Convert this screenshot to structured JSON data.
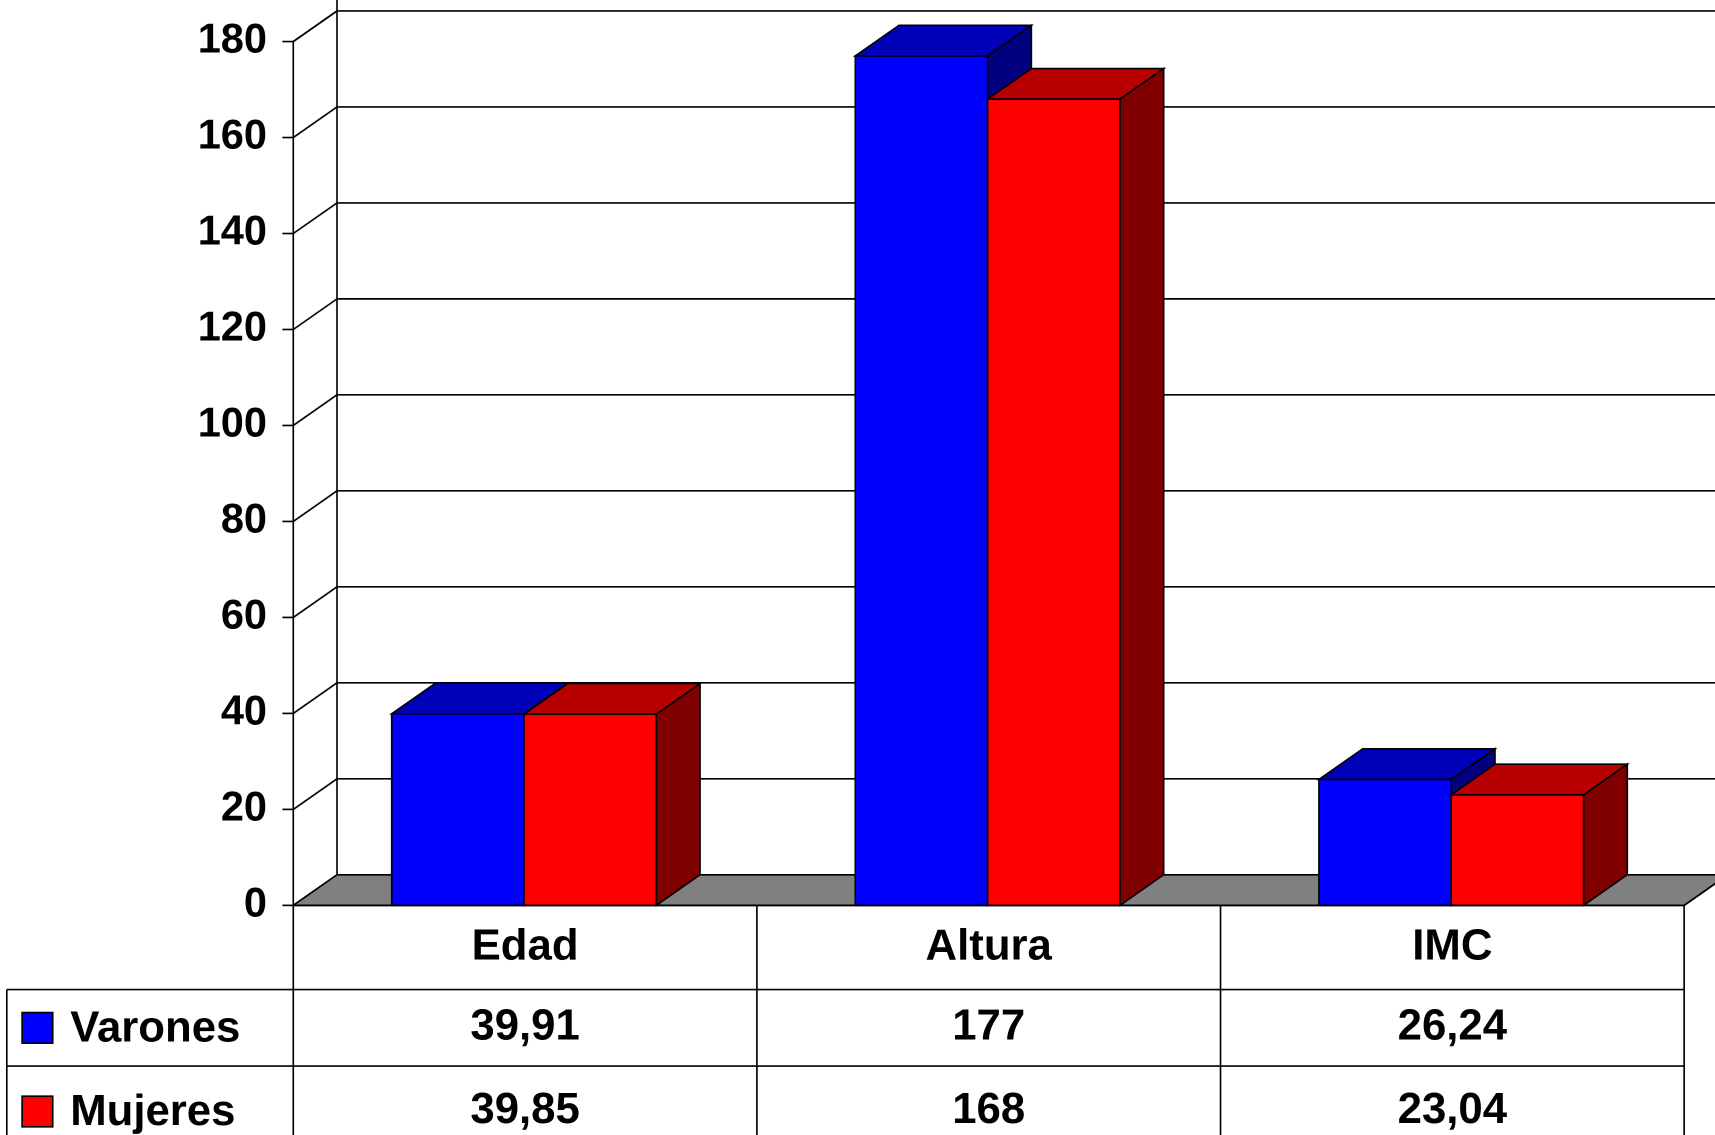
{
  "chart_data": {
    "type": "bar3d",
    "categories": [
      "Edad",
      "Altura",
      "IMC"
    ],
    "series": [
      {
        "name": "Varones",
        "color": "#0000ff",
        "values": [
          39.91,
          177,
          26.24
        ],
        "value_labels": [
          "39,91",
          "177",
          "26,24"
        ]
      },
      {
        "name": "Mujeres",
        "color": "#ff0000",
        "values": [
          39.85,
          168,
          23.04
        ],
        "value_labels": [
          "39,85",
          "168",
          "23,04"
        ]
      }
    ],
    "ylim": [
      0,
      180
    ],
    "yticks": [
      0,
      20,
      40,
      60,
      80,
      100,
      120,
      140,
      160,
      180
    ],
    "grid": true
  }
}
